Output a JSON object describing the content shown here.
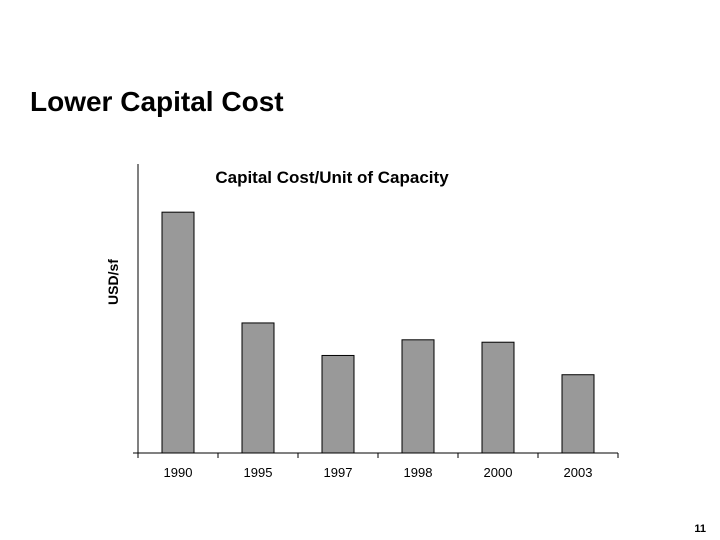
{
  "slide": {
    "title": "Lower Capital Cost",
    "page_number": "11"
  },
  "colors": {
    "bar_fill": "#999999",
    "bar_stroke": "#000000",
    "axis": "#000000",
    "background": "#ffffff"
  },
  "chart_data": {
    "type": "bar",
    "title": "Capital Cost/Unit of Capacity",
    "xlabel": "",
    "ylabel": "USD/sf",
    "categories": [
      "1990",
      "1995",
      "1997",
      "1998",
      "2000",
      "2003"
    ],
    "values": [
      100,
      54,
      40.5,
      47,
      46,
      32.5
    ],
    "ylim": [
      0,
      120
    ],
    "y_tick_labels": false,
    "grid": false,
    "legend": "none"
  }
}
